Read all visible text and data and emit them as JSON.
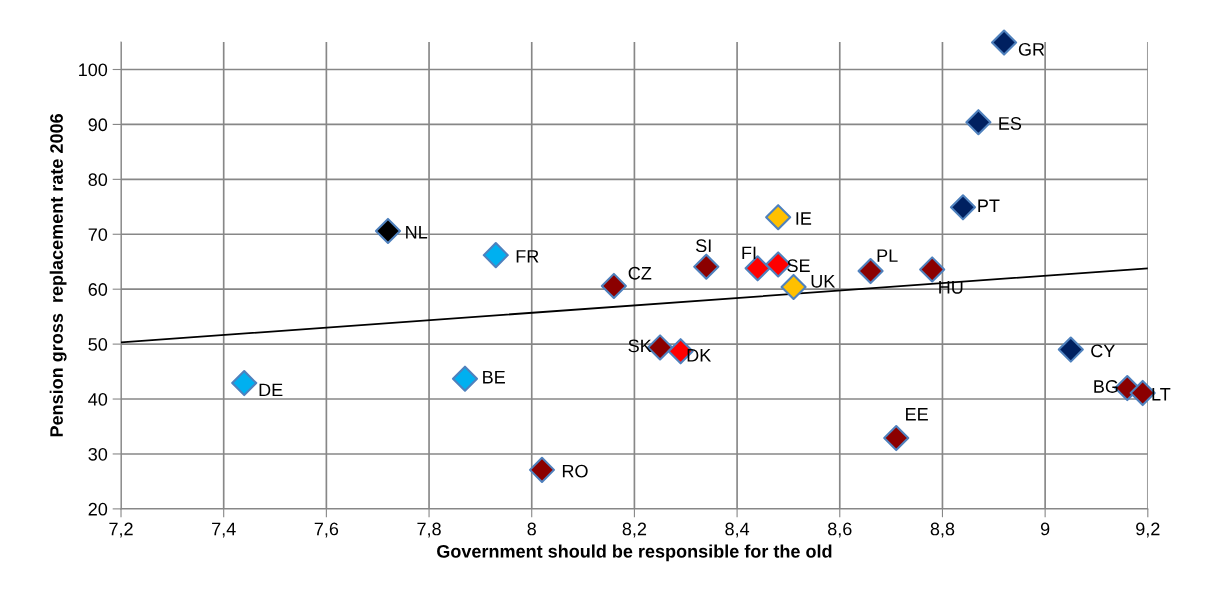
{
  "chart_data": {
    "type": "scatter",
    "xlabel": "Government should be responsible for the old",
    "ylabel": "Pension gross  replacement rate 2006",
    "marker": "diamond",
    "grid": true,
    "legend": false,
    "xlim": [
      7.2,
      9.2
    ],
    "ylim": [
      20,
      105
    ],
    "xticks": [
      {
        "value": 7.2,
        "label": "7,2"
      },
      {
        "value": 7.4,
        "label": "7,4"
      },
      {
        "value": 7.6,
        "label": "7,6"
      },
      {
        "value": 7.8,
        "label": "7,8"
      },
      8,
      {
        "value": 8.2,
        "label": "8,2"
      },
      {
        "value": 8.4,
        "label": "8,4"
      },
      {
        "value": 8.6,
        "label": "8,6"
      },
      {
        "value": 8.8,
        "label": "8,8"
      },
      9,
      {
        "value": 9.2,
        "label": "9,2"
      }
    ],
    "yticks": [
      20,
      30,
      40,
      50,
      60,
      70,
      80,
      90,
      100
    ],
    "series": [
      {
        "name": "DE",
        "color": "#00b0f0",
        "x": [
          7.44
        ],
        "values": [
          42.9
        ]
      },
      {
        "name": "NL",
        "color": "#000000",
        "x": [
          7.72
        ],
        "values": [
          70.6
        ]
      },
      {
        "name": "BE",
        "color": "#00b0f0",
        "x": [
          7.87
        ],
        "values": [
          43.7
        ]
      },
      {
        "name": "FR",
        "color": "#00b0f0",
        "x": [
          7.93
        ],
        "values": [
          66.2
        ]
      },
      {
        "name": "RO",
        "color": "#8b0000",
        "x": [
          8.02
        ],
        "values": [
          27.1
        ]
      },
      {
        "name": "CZ",
        "color": "#8b0000",
        "x": [
          8.16
        ],
        "values": [
          60.6
        ]
      },
      {
        "name": "SK",
        "color": "#8b0000",
        "x": [
          8.25
        ],
        "values": [
          49.4
        ]
      },
      {
        "name": "DK",
        "color": "#ff0000",
        "x": [
          8.29
        ],
        "values": [
          48.7
        ]
      },
      {
        "name": "SI",
        "color": "#8b0000",
        "x": [
          8.34
        ],
        "values": [
          64.1
        ]
      },
      {
        "name": "FI",
        "color": "#ff0000",
        "x": [
          8.44
        ],
        "values": [
          63.8
        ]
      },
      {
        "name": "IE",
        "color": "#ffc000",
        "x": [
          8.48
        ],
        "values": [
          73.1
        ]
      },
      {
        "name": "SE",
        "color": "#ff0000",
        "x": [
          8.48
        ],
        "values": [
          64.5
        ]
      },
      {
        "name": "UK",
        "color": "#ffc000",
        "x": [
          8.51
        ],
        "values": [
          60.4
        ]
      },
      {
        "name": "PL",
        "color": "#8b0000",
        "x": [
          8.66
        ],
        "values": [
          63.3
        ]
      },
      {
        "name": "EE",
        "color": "#8b0000",
        "x": [
          8.71
        ],
        "values": [
          32.9
        ]
      },
      {
        "name": "HU",
        "color": "#8b0000",
        "x": [
          8.78
        ],
        "values": [
          63.6
        ]
      },
      {
        "name": "PT",
        "color": "#002060",
        "x": [
          8.84
        ],
        "values": [
          74.9
        ]
      },
      {
        "name": "ES",
        "color": "#002060",
        "x": [
          8.87
        ],
        "values": [
          90.4
        ]
      },
      {
        "name": "GR",
        "color": "#002060",
        "x": [
          8.92
        ],
        "values": [
          104.9
        ]
      },
      {
        "name": "CY",
        "color": "#002060",
        "x": [
          9.05
        ],
        "values": [
          49.0
        ]
      },
      {
        "name": "BG",
        "color": "#8b0000",
        "x": [
          9.16
        ],
        "values": [
          42.0
        ]
      },
      {
        "name": "LT",
        "color": "#8b0000",
        "x": [
          9.19
        ],
        "values": [
          41.1
        ]
      },
      {
        "type": "line",
        "marker": "none",
        "color": "#000000",
        "x": [
          7.2,
          9.2
        ],
        "values": [
          50.3,
          63.8
        ]
      }
    ]
  }
}
